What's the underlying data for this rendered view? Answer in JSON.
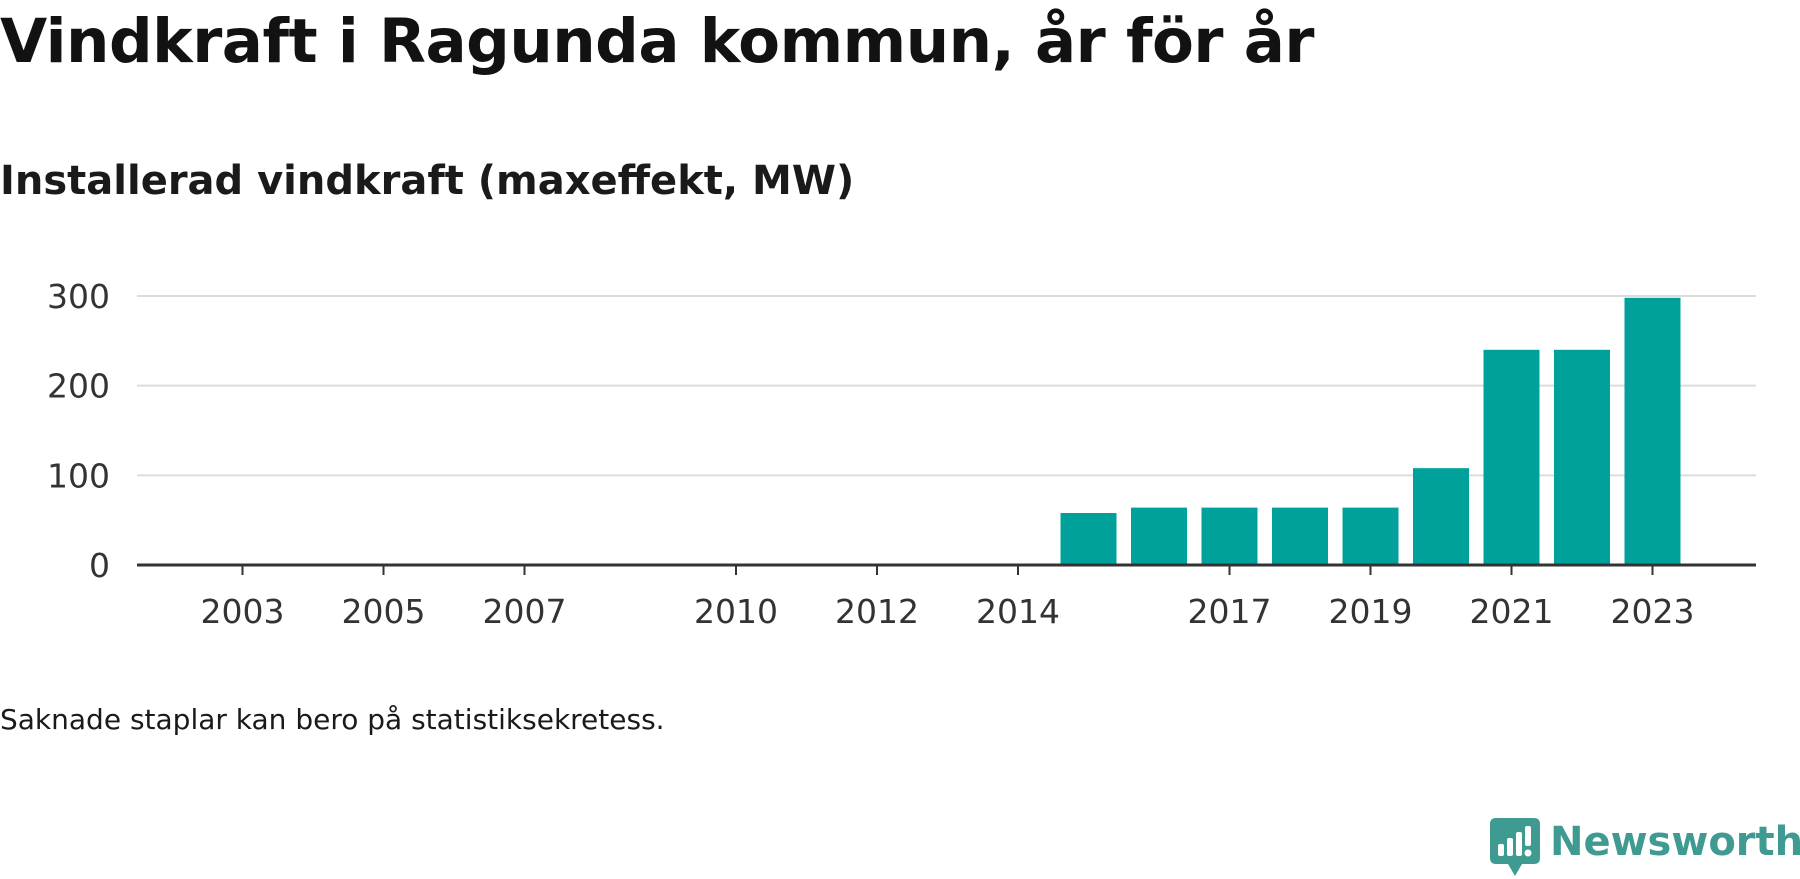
{
  "title": "Vindkraft i Ragunda kommun, år för år",
  "subtitle": "Installerad vindkraft (maxeffekt, MW)",
  "note": "Saknade staplar kan bero på statistiksekretess.",
  "brand": {
    "name": "Newsworthy",
    "icon": "newsworthy-logo-icon",
    "color": "#3f9a91"
  },
  "colors": {
    "bar": "#00a19a",
    "grid": "#dcdcdc",
    "axis": "#333333",
    "tick_text": "#333333"
  },
  "chart_data": {
    "type": "bar",
    "title": "Vindkraft i Ragunda kommun, år för år",
    "subtitle": "Installerad vindkraft (maxeffekt, MW)",
    "xlabel": "",
    "ylabel": "",
    "categories": [
      2002,
      2003,
      2004,
      2005,
      2006,
      2007,
      2008,
      2009,
      2010,
      2011,
      2012,
      2013,
      2014,
      2015,
      2016,
      2017,
      2018,
      2019,
      2020,
      2021,
      2022,
      2023
    ],
    "values": [
      null,
      null,
      null,
      null,
      null,
      null,
      null,
      null,
      null,
      null,
      null,
      null,
      null,
      58,
      64,
      64,
      64,
      64,
      108,
      240,
      240,
      298
    ],
    "x_ticks": [
      2003,
      2005,
      2007,
      2010,
      2012,
      2014,
      2017,
      2019,
      2021,
      2023
    ],
    "y_ticks": [
      0,
      100,
      200,
      300
    ],
    "ylim": [
      0,
      300
    ],
    "grid": true,
    "legend": "none"
  }
}
